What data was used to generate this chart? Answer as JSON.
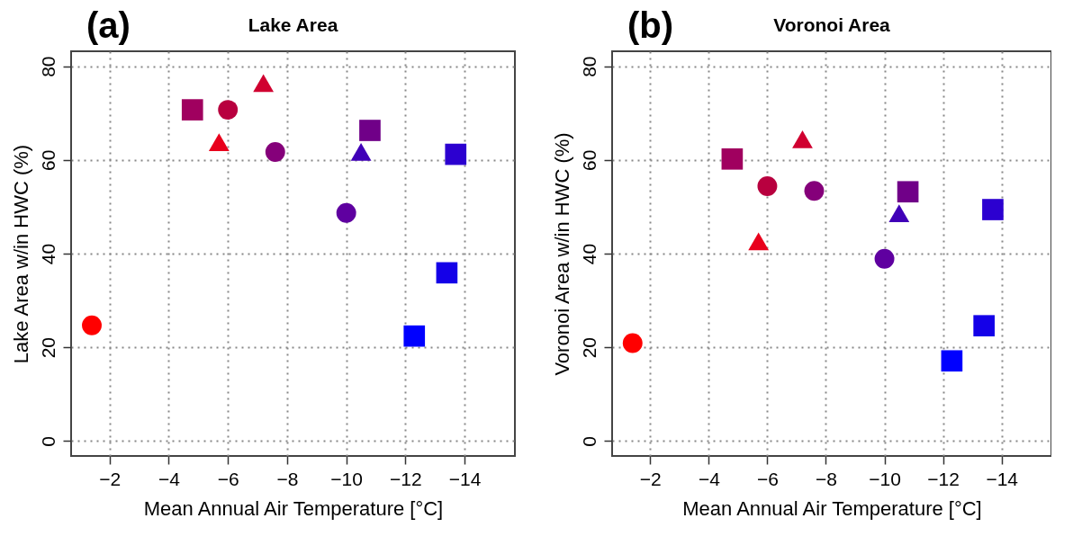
{
  "chart_data": [
    {
      "type": "scatter",
      "title": "Lake Area",
      "annotations": [
        "(a)"
      ],
      "xlabel": "Mean Annual Air Temperature [°C]",
      "ylabel": "Lake Area w/in HWC (%)",
      "xlim": [
        -0.7,
        -15.7
      ],
      "ylim": [
        -3.2,
        83.2
      ],
      "xticks": [
        -2,
        -4,
        -6,
        -8,
        -10,
        -12,
        -14
      ],
      "yticks": [
        0,
        20,
        40,
        60,
        80
      ],
      "grid": true,
      "series": [
        {
          "marker": "circle",
          "x": [
            -1.4,
            -6.0,
            -7.6,
            -10.0
          ],
          "values": [
            24.7,
            70.7,
            61.7,
            48.7
          ],
          "colors": [
            "#ff0000",
            "#b8003f",
            "#85007a",
            "#5f00a0"
          ]
        },
        {
          "marker": "square",
          "x": [
            -4.8,
            -10.8,
            -13.7,
            -13.4,
            -12.3
          ],
          "values": [
            70.7,
            66.3,
            61.2,
            35.9,
            22.4
          ],
          "colors": [
            "#a0005f",
            "#700088",
            "#2c00d0",
            "#1400e8",
            "#0000ff"
          ]
        },
        {
          "marker": "triangle",
          "x": [
            -7.2,
            -5.7,
            -10.5
          ],
          "values": [
            76.4,
            63.8,
            61.7
          ],
          "colors": [
            "#d00030",
            "#e8001c",
            "#4000b8"
          ]
        }
      ]
    },
    {
      "type": "scatter",
      "title": "Voronoi Area",
      "annotations": [
        "(b)"
      ],
      "xlabel": "Mean Annual Air Temperature [°C]",
      "ylabel": "Voronoi Area w/in HWC (%)",
      "xlim": [
        -0.7,
        -15.7
      ],
      "ylim": [
        -3.2,
        83.2
      ],
      "xticks": [
        -2,
        -4,
        -6,
        -8,
        -10,
        -12,
        -14
      ],
      "yticks": [
        0,
        20,
        40,
        60,
        80
      ],
      "grid": true,
      "series": [
        {
          "marker": "circle",
          "x": [
            -1.4,
            -6.0,
            -7.6,
            -10.0
          ],
          "values": [
            20.9,
            54.4,
            53.4,
            38.9
          ],
          "colors": [
            "#ff0000",
            "#b8003f",
            "#85007a",
            "#5f00a0"
          ]
        },
        {
          "marker": "square",
          "x": [
            -4.8,
            -10.8,
            -13.7,
            -13.4,
            -12.3
          ],
          "values": [
            60.2,
            53.2,
            49.4,
            24.6,
            17.1
          ],
          "colors": [
            "#a0005f",
            "#700088",
            "#2c00d0",
            "#1400e8",
            "#0000ff"
          ]
        },
        {
          "marker": "triangle",
          "x": [
            -7.2,
            -5.7,
            -10.5
          ],
          "values": [
            64.4,
            42.6,
            48.6
          ],
          "colors": [
            "#d00030",
            "#e8001c",
            "#4000b8"
          ]
        }
      ]
    }
  ]
}
